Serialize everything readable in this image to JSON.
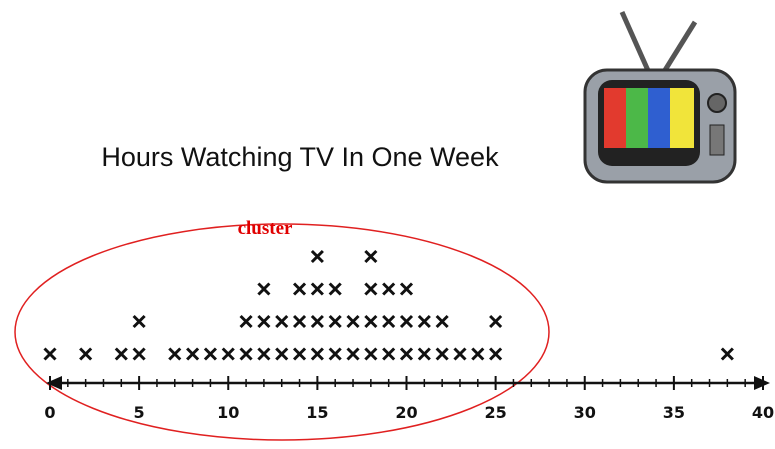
{
  "chart_data": {
    "type": "dot",
    "title": "Hours Watching TV In One Week",
    "annotation": "cluster",
    "x": [
      0,
      2,
      4,
      5,
      7,
      8,
      9,
      10,
      11,
      12,
      13,
      14,
      15,
      16,
      17,
      18,
      19,
      20,
      21,
      22,
      23,
      24,
      25,
      38
    ],
    "values": [
      1,
      1,
      1,
      2,
      1,
      1,
      1,
      1,
      2,
      3,
      2,
      3,
      4,
      3,
      2,
      4,
      3,
      3,
      2,
      2,
      1,
      1,
      2,
      1
    ],
    "color": "#111111",
    "xlim": [
      0,
      40
    ],
    "xticks": [
      0,
      5,
      10,
      15,
      20,
      25,
      30,
      35,
      40
    ],
    "minor_xticks": [
      0,
      1,
      2,
      3,
      4,
      5,
      6,
      7,
      8,
      9,
      10,
      11,
      12,
      13,
      14,
      15,
      16,
      17,
      18,
      19,
      20,
      21,
      22,
      23,
      24,
      25,
      26,
      27,
      28,
      29,
      30,
      31,
      32,
      33,
      34,
      35,
      36,
      37,
      38,
      39,
      40
    ]
  }
}
